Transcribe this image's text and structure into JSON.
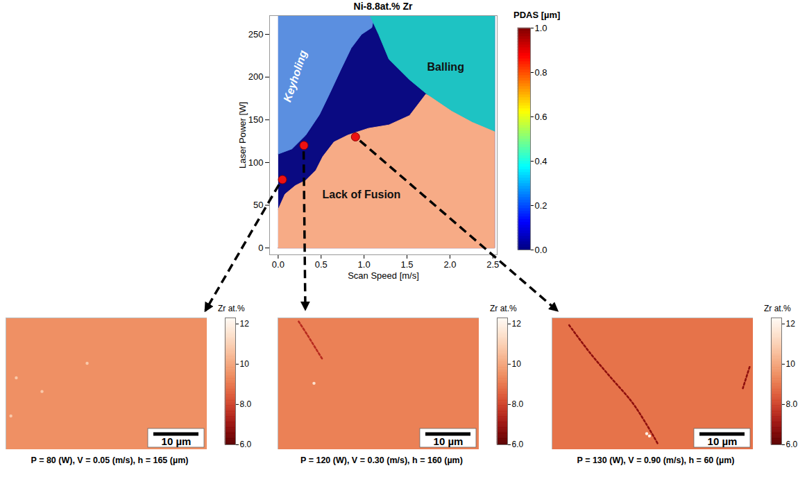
{
  "chart_data": [
    {
      "type": "region_map",
      "title": "Ni-8.8at.% Zr",
      "x_label": "Scan Speed [m/s]",
      "y_label": "Laser Power [W]",
      "xlim": [
        -0.1,
        2.55
      ],
      "ylim": [
        -8,
        272
      ],
      "xticks": [
        {
          "value": 0,
          "label": "0.0"
        },
        {
          "value": 0.5,
          "label": "0.5"
        },
        {
          "value": 1,
          "label": "1.0"
        },
        {
          "value": 1.5,
          "label": "1.5"
        },
        {
          "value": 2,
          "label": "2.0"
        },
        {
          "value": 2.5,
          "label": "2.5"
        }
      ],
      "yticks": [
        0,
        50,
        100,
        150,
        200,
        250
      ],
      "grid": false,
      "regions": [
        {
          "color": "#0a0a82",
          "x": [
            0,
            2.52,
            2.52,
            0
          ],
          "y": [
            0,
            0,
            272,
            272
          ]
        },
        {
          "color": "#5b8fe0",
          "label": {
            "text": "Keyholing",
            "color": "#ffffff",
            "x": 0.2,
            "y": 201
          },
          "x": [
            0,
            0.16,
            0.32,
            0.48,
            0.6,
            0.73,
            0.85,
            0.97,
            1.09,
            1.12,
            0
          ],
          "y": [
            110,
            116,
            132,
            156,
            181,
            209,
            234,
            250,
            258,
            272,
            272
          ]
        },
        {
          "color": "#1ec3c3",
          "label": {
            "text": "Balling",
            "color": "#111111",
            "x": 1.95,
            "y": 212
          },
          "x": [
            1.07,
            1.17,
            1.29,
            1.53,
            1.77,
            2.02,
            2.26,
            2.52,
            2.52
          ],
          "y": [
            272,
            250,
            221,
            197,
            177,
            160,
            147,
            136,
            272
          ]
        },
        {
          "color": "#f7ab86",
          "label": {
            "text": "Lack of Fusion",
            "color": "#111111",
            "x": 0.97,
            "y": 62
          },
          "x": [
            0,
            0.08,
            0.2,
            0.32,
            0.44,
            0.52,
            0.65,
            0.81,
            1.05,
            1.29,
            1.53,
            1.72,
            1.77,
            2.02,
            2.26,
            2.52,
            2.52,
            0
          ],
          "y": [
            45,
            63,
            73,
            79,
            91,
            107,
            124,
            132,
            140,
            144,
            155,
            180,
            177,
            160,
            147,
            136,
            0,
            0
          ]
        }
      ],
      "points": {
        "color": "#ee1111",
        "marker": "circle",
        "x": [
          0.05,
          0.3,
          0.9
        ],
        "y": [
          80,
          120,
          130
        ]
      },
      "colorbar": {
        "label": "PDAS [µm]",
        "range": [
          0,
          1
        ],
        "ticks": [
          {
            "value": 0,
            "label": "0.0"
          },
          {
            "value": 0.2,
            "label": "0.2"
          },
          {
            "value": 0.4,
            "label": "0.4"
          },
          {
            "value": 0.6,
            "label": "0.6"
          },
          {
            "value": 0.8,
            "label": "0.8"
          },
          {
            "value": 1,
            "label": "1.0"
          }
        ]
      }
    },
    {
      "type": "image_map",
      "caption": "P = 80 (W), V = 0.05 (m/s), h = 165 (µm)",
      "xlim": [
        0,
        44.6
      ],
      "ylim": [
        0,
        29
      ],
      "tick_labels": false,
      "background": 9.5,
      "spots": {
        "x": [
          2.3,
          8,
          18,
          1.1
        ],
        "y": [
          15.8,
          12.8,
          19,
          7.4
        ],
        "values": [
          10.8,
          10.8,
          10.8,
          10.8
        ]
      },
      "streaks": [],
      "scale_bar": {
        "length": 10,
        "label": "10 µm"
      },
      "colorbar": {
        "label": "Zr at.%",
        "range": [
          6,
          12.3
        ],
        "ticks": [
          {
            "value": 6,
            "label": "6.0"
          },
          {
            "value": 8,
            "label": "8.0"
          },
          10,
          12
        ]
      }
    },
    {
      "type": "image_map",
      "caption": "P = 120 (W), V = 0.30 (m/s), h = 160 (µm)",
      "xlim": [
        0,
        44.6
      ],
      "ylim": [
        0,
        29
      ],
      "tick_labels": false,
      "background": 9.2,
      "spots": {
        "x": [
          8
        ],
        "y": [
          14.6
        ],
        "values": [
          11.5
        ]
      },
      "streaks": [
        {
          "x": [
            4.6,
            6.5,
            8.3,
            10
          ],
          "y": [
            28.2,
            25.3,
            22.4,
            19.7
          ],
          "value": 7.5
        }
      ],
      "scale_bar": {
        "length": 10,
        "label": "10 µm"
      },
      "colorbar": {
        "label": "Zr at.%",
        "range": [
          6,
          12.3
        ],
        "ticks": [
          {
            "value": 6,
            "label": "6.0"
          },
          {
            "value": 8,
            "label": "8.0"
          },
          10,
          12
        ]
      }
    },
    {
      "type": "image_map",
      "caption": "P = 130 (W), V = 0.90 (m/s), h = 60 (µm)",
      "xlim": [
        0,
        44.6
      ],
      "ylim": [
        0,
        29
      ],
      "tick_labels": false,
      "background": 8.9,
      "spots": {
        "x": [
          21,
          21.6
        ],
        "y": [
          3.5,
          3
        ],
        "values": [
          12,
          12
        ]
      },
      "streaks": [
        {
          "x": [
            3.8,
            8.5,
            13.1,
            17.7,
            20.8,
            23.5
          ],
          "y": [
            27.4,
            21.2,
            15.8,
            10.5,
            5.8,
            1.2
          ],
          "value": 6.8
        },
        {
          "x": [
            43.8,
            42.3
          ],
          "y": [
            18.2,
            13.5
          ],
          "value": 6.8
        }
      ],
      "scale_bar": {
        "length": 10,
        "label": "10 µm"
      },
      "colorbar": {
        "label": "Zr at.%",
        "range": [
          6,
          12.3
        ],
        "ticks": [
          {
            "value": 6,
            "label": "6.0"
          },
          {
            "value": 8,
            "label": "8.0"
          },
          10,
          12
        ]
      }
    }
  ]
}
